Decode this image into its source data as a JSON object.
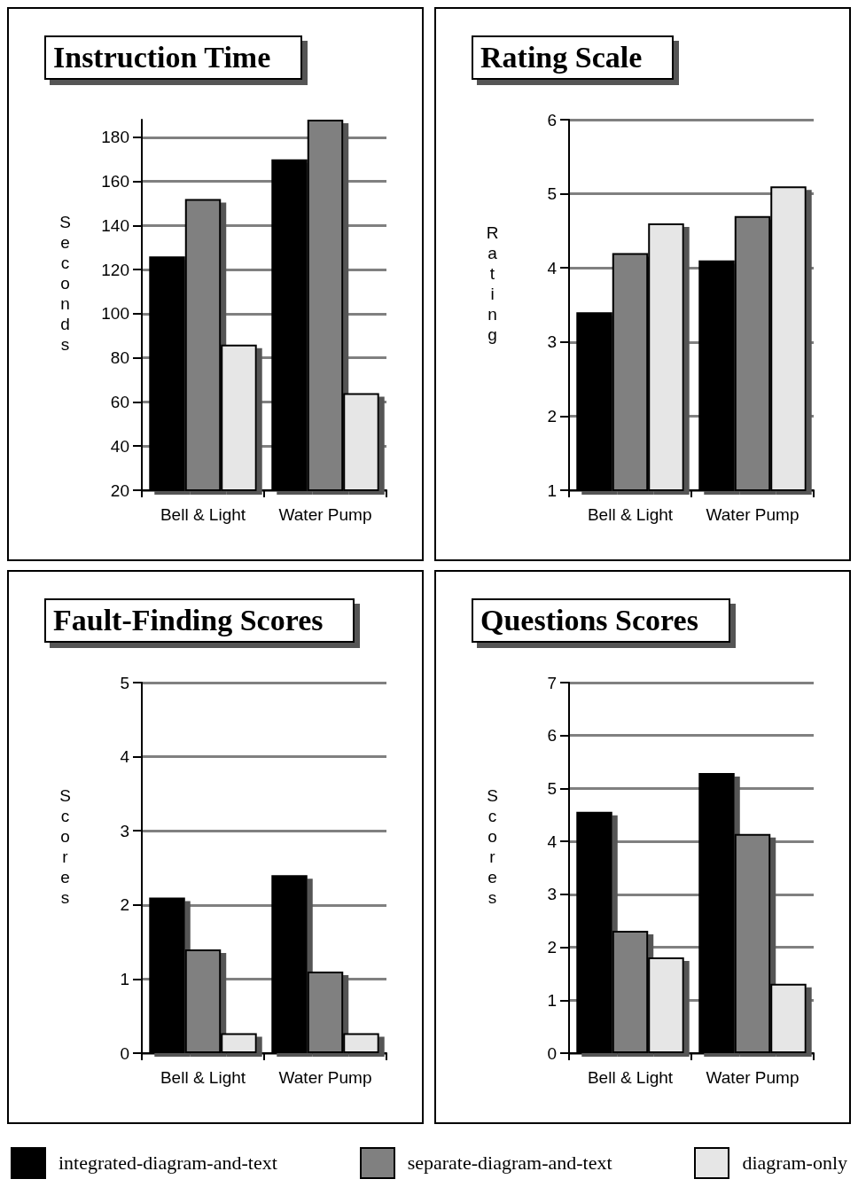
{
  "chart_data": [
    {
      "type": "bar",
      "title": "Instruction Time",
      "ylabel": "Seconds",
      "categories": [
        "Bell & Light",
        "Water Pump"
      ],
      "ylim": [
        20,
        188
      ],
      "yticks": [
        20,
        40,
        60,
        80,
        100,
        120,
        140,
        160,
        180
      ],
      "grid": "y",
      "legend": "bottom",
      "series": [
        {
          "name": "integrated-diagram-and-text",
          "color": "#000000",
          "values": [
            126,
            170
          ]
        },
        {
          "name": "separate-diagram-and-text",
          "color": "#808080",
          "values": [
            152,
            188
          ]
        },
        {
          "name": "diagram-only",
          "color": "#e6e6e6",
          "values": [
            86,
            64
          ]
        }
      ]
    },
    {
      "type": "bar",
      "title": "Rating Scale",
      "ylabel": "Rating",
      "categories": [
        "Bell & Light",
        "Water Pump"
      ],
      "ylim": [
        1,
        6
      ],
      "yticks": [
        1,
        2,
        3,
        4,
        5,
        6
      ],
      "grid": "y",
      "series": [
        {
          "color": "#000000",
          "values": [
            3.4,
            4.1
          ]
        },
        {
          "color": "#808080",
          "values": [
            4.2,
            4.7
          ]
        },
        {
          "color": "#e6e6e6",
          "values": [
            4.6,
            5.1
          ]
        }
      ]
    },
    {
      "type": "bar",
      "title": "Fault-Finding Scores",
      "ylabel": "Scores",
      "categories": [
        "Bell & Light",
        "Water Pump"
      ],
      "ylim": [
        0,
        5
      ],
      "yticks": [
        0,
        1,
        2,
        3,
        4,
        5
      ],
      "grid": "y",
      "series": [
        {
          "color": "#000000",
          "values": [
            2.1,
            2.4
          ]
        },
        {
          "color": "#808080",
          "values": [
            1.4,
            1.1
          ]
        },
        {
          "color": "#e6e6e6",
          "values": [
            0.27,
            0.27
          ]
        }
      ]
    },
    {
      "type": "bar",
      "title": "Questions Scores",
      "ylabel": "Scores",
      "categories": [
        "Bell & Light",
        "Water Pump"
      ],
      "ylim": [
        0,
        7
      ],
      "yticks": [
        0,
        1,
        2,
        3,
        4,
        5,
        6,
        7
      ],
      "grid": "y",
      "series": [
        {
          "color": "#000000",
          "values": [
            4.56,
            5.29
          ]
        },
        {
          "color": "#808080",
          "values": [
            2.31,
            4.14
          ]
        },
        {
          "color": "#e6e6e6",
          "values": [
            1.81,
            1.31
          ]
        }
      ]
    }
  ]
}
